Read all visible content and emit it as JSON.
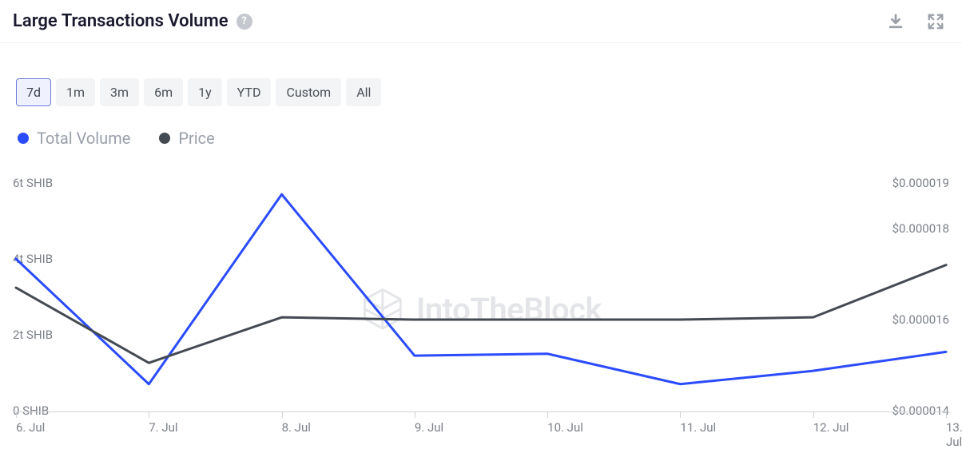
{
  "header": {
    "title": "Large Transactions Volume",
    "help_tooltip": "?"
  },
  "range_buttons": [
    {
      "label": "7d",
      "active": true
    },
    {
      "label": "1m",
      "active": false
    },
    {
      "label": "3m",
      "active": false
    },
    {
      "label": "6m",
      "active": false
    },
    {
      "label": "1y",
      "active": false
    },
    {
      "label": "YTD",
      "active": false
    },
    {
      "label": "Custom",
      "active": false
    },
    {
      "label": "All",
      "active": false
    }
  ],
  "legend": [
    {
      "name": "Total Volume",
      "color": "#2b4bff"
    },
    {
      "name": "Price",
      "color": "#444a52"
    }
  ],
  "chart": {
    "type": "line",
    "background_color": "#ffffff",
    "x": {
      "categories": [
        "6. Jul",
        "7. Jul",
        "8. Jul",
        "9. Jul",
        "10. Jul",
        "11. Jul",
        "12. Jul",
        "13. Jul"
      ],
      "axis_color": "#d0d3d8",
      "label_fontsize": 15,
      "label_color": "#7b8088"
    },
    "y_left": {
      "label_suffix": " SHIB",
      "min": 0,
      "max": 6,
      "ticks": [
        {
          "v": 0,
          "label": "0 SHIB"
        },
        {
          "v": 2,
          "label": "2t SHIB"
        },
        {
          "v": 4,
          "label": "4t SHIB"
        },
        {
          "v": 6,
          "label": "6t SHIB"
        }
      ],
      "label_fontsize": 15,
      "label_color": "#7b8088"
    },
    "y_right": {
      "min": 1.4e-05,
      "max": 1.9e-05,
      "ticks": [
        {
          "v": 1.4e-05,
          "label": "$0.000014"
        },
        {
          "v": 1.6e-05,
          "label": "$0.000016"
        },
        {
          "v": 1.8e-05,
          "label": "$0.000018"
        },
        {
          "v": 1.9e-05,
          "label": "$0.000019"
        }
      ],
      "label_fontsize": 15,
      "label_color": "#7b8088"
    },
    "series": [
      {
        "name": "Total Volume",
        "axis": "left",
        "color": "#2b4bff",
        "line_width": 3,
        "data": [
          4.0,
          0.7,
          5.7,
          1.45,
          1.5,
          0.7,
          1.05,
          1.55
        ]
      },
      {
        "name": "Price",
        "axis": "right",
        "color": "#444a52",
        "line_width": 3,
        "data": [
          1.67e-05,
          1.505e-05,
          1.605e-05,
          1.6e-05,
          1.6e-05,
          1.6e-05,
          1.605e-05,
          1.72e-05
        ]
      }
    ],
    "watermark": {
      "text": "IntoTheBlock",
      "color": "#e3e5e8",
      "fontsize": 40
    }
  }
}
